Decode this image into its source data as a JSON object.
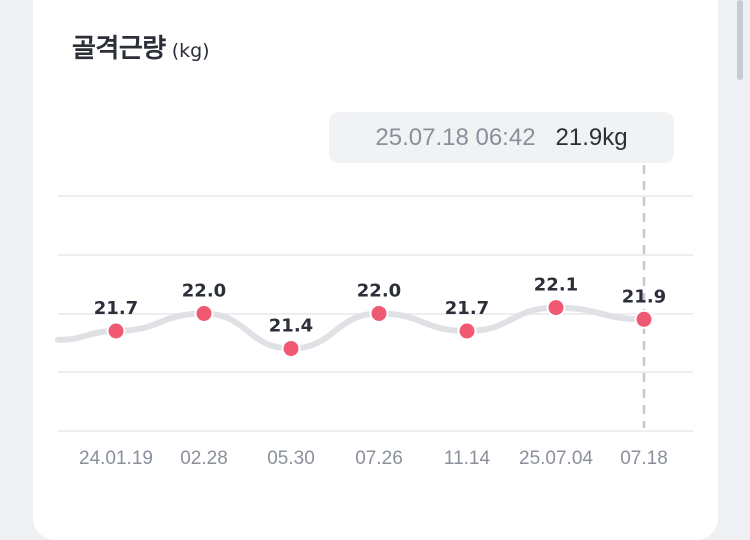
{
  "card": {
    "title": "골격근량",
    "unit": "(kg)"
  },
  "tooltip": {
    "datetime": "25.07.18 06:42",
    "value": "21.9kg"
  },
  "chart_data": {
    "type": "line",
    "categories": [
      "24.01.19",
      "02.28",
      "05.30",
      "07.26",
      "11.14",
      "25.07.04",
      "07.18"
    ],
    "values": [
      21.7,
      22.0,
      21.4,
      22.0,
      21.7,
      22.1,
      21.9
    ],
    "value_labels": [
      "21.7",
      "22.0",
      "21.4",
      "22.0",
      "21.7",
      "22.1",
      "21.9"
    ],
    "title": "골격근량",
    "unit": "(kg)",
    "grid": true,
    "selected_index": 6,
    "colors": {
      "line": "#dfe1e5",
      "point": "#ef5a72",
      "grid": "#e6e8eb",
      "guide": "#c4c8ce"
    }
  }
}
